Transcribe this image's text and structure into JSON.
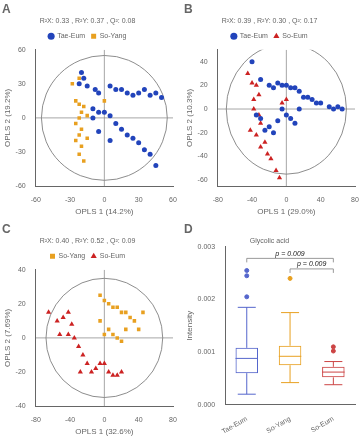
{
  "chart_data": [
    {
      "type": "scatter",
      "panel_label": "A",
      "title": "R²X: 0.33 , R²Y: 0.37 , Q²: 0.08",
      "xlabel": "OPLS 1 (14.2%)",
      "ylabel": "OPLS 2 (19.2%)",
      "xlim": [
        -60,
        60
      ],
      "ylim": [
        -60,
        60
      ],
      "xticks": [
        -60,
        -30,
        0,
        30,
        60
      ],
      "yticks": [
        -60,
        -30,
        0,
        30,
        60
      ],
      "grid": false,
      "legend": "top",
      "ellipse": {
        "center": [
          0,
          0
        ],
        "rx": 55,
        "ry": 55
      },
      "reference_lines": {
        "x": 0,
        "y": 0
      },
      "series": [
        {
          "name": "Tae-Eum",
          "color": "#2244BB",
          "marker": "circle",
          "values": [
            [
              -20,
              40
            ],
            [
              -18,
              35
            ],
            [
              -22,
              30
            ],
            [
              -15,
              28
            ],
            [
              -8,
              25
            ],
            [
              -5,
              22
            ],
            [
              5,
              28
            ],
            [
              10,
              25
            ],
            [
              15,
              25
            ],
            [
              20,
              22
            ],
            [
              25,
              20
            ],
            [
              30,
              22
            ],
            [
              35,
              25
            ],
            [
              40,
              20
            ],
            [
              45,
              22
            ],
            [
              50,
              18
            ],
            [
              -10,
              8
            ],
            [
              -5,
              5
            ],
            [
              0,
              5
            ],
            [
              5,
              2
            ],
            [
              10,
              -5
            ],
            [
              15,
              -10
            ],
            [
              20,
              -15
            ],
            [
              25,
              -18
            ],
            [
              30,
              -22
            ],
            [
              35,
              -28
            ],
            [
              40,
              -32
            ],
            [
              45,
              -42
            ],
            [
              -5,
              -12
            ],
            [
              5,
              -20
            ],
            [
              -10,
              0
            ]
          ]
        },
        {
          "name": "So-Yang",
          "color": "#E8A020",
          "marker": "square",
          "values": [
            [
              -22,
              35
            ],
            [
              -28,
              30
            ],
            [
              -25,
              15
            ],
            [
              -22,
              12
            ],
            [
              -18,
              10
            ],
            [
              -20,
              5
            ],
            [
              -15,
              2
            ],
            [
              -22,
              0
            ],
            [
              -25,
              -5
            ],
            [
              -20,
              -10
            ],
            [
              -22,
              -15
            ],
            [
              -25,
              -20
            ],
            [
              -20,
              -25
            ],
            [
              -22,
              -32
            ],
            [
              -18,
              -38
            ],
            [
              -15,
              -18
            ],
            [
              0,
              15
            ]
          ]
        }
      ]
    },
    {
      "type": "scatter",
      "panel_label": "B",
      "title": "R²X: 0.39 , R²Y: 0.30 , Q²: 0.17",
      "xlabel": "OPLS 1 (29.0%)",
      "ylabel": "OPLS 2 (10.3%)",
      "xlim": [
        -80,
        80
      ],
      "ylim": [
        -65,
        50
      ],
      "xticks": [
        -80,
        -40,
        0,
        40,
        80
      ],
      "yticks": [
        -60,
        -40,
        -20,
        0,
        20,
        40
      ],
      "grid": false,
      "legend": "top",
      "ellipse": {
        "center": [
          0,
          0
        ],
        "rx": 70,
        "ry": 55
      },
      "reference_lines": {
        "x": 0,
        "y": 0
      },
      "series": [
        {
          "name": "Tae-Eum",
          "color": "#2244BB",
          "marker": "circle",
          "values": [
            [
              -40,
              40
            ],
            [
              -30,
              25
            ],
            [
              -20,
              20
            ],
            [
              -15,
              18
            ],
            [
              -10,
              22
            ],
            [
              -5,
              20
            ],
            [
              0,
              20
            ],
            [
              5,
              18
            ],
            [
              10,
              18
            ],
            [
              15,
              15
            ],
            [
              20,
              10
            ],
            [
              25,
              10
            ],
            [
              30,
              8
            ],
            [
              35,
              5
            ],
            [
              40,
              5
            ],
            [
              50,
              2
            ],
            [
              55,
              0
            ],
            [
              60,
              2
            ],
            [
              65,
              0
            ],
            [
              -5,
              0
            ],
            [
              0,
              -5
            ],
            [
              5,
              -8
            ],
            [
              10,
              -12
            ],
            [
              -10,
              -10
            ],
            [
              -20,
              -15
            ],
            [
              -25,
              -18
            ],
            [
              -15,
              -20
            ],
            [
              -30,
              -8
            ],
            [
              -35,
              -5
            ],
            [
              15,
              0
            ]
          ]
        },
        {
          "name": "So-Eum",
          "color": "#CC2222",
          "marker": "triangle",
          "values": [
            [
              -45,
              30
            ],
            [
              -40,
              22
            ],
            [
              -35,
              20
            ],
            [
              -38,
              8
            ],
            [
              -32,
              12
            ],
            [
              -38,
              0
            ],
            [
              -32,
              -5
            ],
            [
              -30,
              -12
            ],
            [
              -35,
              -22
            ],
            [
              -25,
              -28
            ],
            [
              -30,
              -32
            ],
            [
              -22,
              -38
            ],
            [
              -18,
              -42
            ],
            [
              -12,
              -52
            ],
            [
              -8,
              -58
            ],
            [
              -42,
              -18
            ],
            [
              0,
              8
            ],
            [
              -5,
              5
            ]
          ]
        }
      ]
    },
    {
      "type": "scatter",
      "panel_label": "C",
      "title": "R²X: 0.40 , R²Y: 0.52 , Q²: 0.09",
      "xlabel": "OPLS 1 (32.6%)",
      "ylabel": "OPLS 2 (7.69%)",
      "xlim": [
        -80,
        80
      ],
      "ylim": [
        -40,
        40
      ],
      "xticks": [
        -80,
        -40,
        0,
        40,
        80
      ],
      "yticks": [
        -40,
        -20,
        0,
        20,
        40
      ],
      "grid": false,
      "legend": "top",
      "ellipse": {
        "center": [
          0,
          0
        ],
        "rx": 68,
        "ry": 35
      },
      "reference_lines": {
        "x": 0,
        "y": 0
      },
      "series": [
        {
          "name": "So-Yang",
          "color": "#E8A020",
          "marker": "square",
          "values": [
            [
              -5,
              25
            ],
            [
              0,
              22
            ],
            [
              5,
              20
            ],
            [
              10,
              18
            ],
            [
              15,
              18
            ],
            [
              20,
              15
            ],
            [
              25,
              15
            ],
            [
              30,
              12
            ],
            [
              35,
              10
            ],
            [
              40,
              5
            ],
            [
              45,
              15
            ],
            [
              0,
              2
            ],
            [
              5,
              5
            ],
            [
              10,
              2
            ],
            [
              15,
              0
            ],
            [
              20,
              -2
            ],
            [
              -5,
              10
            ],
            [
              25,
              5
            ]
          ]
        },
        {
          "name": "So-Eum",
          "color": "#CC2222",
          "marker": "triangle",
          "values": [
            [
              -65,
              15
            ],
            [
              -55,
              10
            ],
            [
              -48,
              12
            ],
            [
              -42,
              2
            ],
            [
              -38,
              8
            ],
            [
              -35,
              0
            ],
            [
              -30,
              -5
            ],
            [
              -25,
              -10
            ],
            [
              -20,
              -15
            ],
            [
              -15,
              -20
            ],
            [
              -10,
              -18
            ],
            [
              -5,
              -15
            ],
            [
              0,
              -15
            ],
            [
              5,
              -20
            ],
            [
              10,
              -22
            ],
            [
              15,
              -22
            ],
            [
              20,
              -20
            ],
            [
              -52,
              2
            ],
            [
              -42,
              15
            ],
            [
              -28,
              -20
            ]
          ]
        }
      ]
    },
    {
      "type": "box",
      "panel_label": "D",
      "title": "Glycolic acid",
      "ylabel": "Intensity",
      "categories": [
        "Tae-Eum",
        "So-Yang",
        "So-Eum"
      ],
      "colors": [
        "#5566CC",
        "#E8A020",
        "#CC4444"
      ],
      "ylim": [
        0,
        0.003
      ],
      "yticks": [
        {
          "value": 0.0,
          "label": "0.000"
        },
        {
          "value": 0.001,
          "label": "0.001"
        },
        {
          "value": 0.002,
          "label": "0.002"
        },
        {
          "value": 0.003,
          "label": "0.003"
        }
      ],
      "grid": false,
      "boxes": [
        {
          "q1": 0.0006,
          "median": 0.00088,
          "q3": 0.00108,
          "whisker_low": 0.0002,
          "whisker_high": 0.00185,
          "outliers": [
            0.00205,
            0.00245,
            0.00255
          ]
        },
        {
          "q1": 0.00075,
          "median": 0.00092,
          "q3": 0.00112,
          "whisker_low": 0.00042,
          "whisker_high": 0.00175,
          "outliers": [
            0.0024
          ]
        },
        {
          "q1": 0.00052,
          "median": 0.00062,
          "q3": 0.00072,
          "whisker_low": 0.00038,
          "whisker_high": 0.00082,
          "outliers": [
            0.00102,
            0.0011
          ]
        }
      ],
      "annotations": [
        {
          "text": "p = 0.009",
          "from": "Tae-Eum",
          "to": "So-Eum",
          "y": 0.00278
        },
        {
          "text": "p = 0.009",
          "from": "So-Yang",
          "to": "So-Eum",
          "y": 0.00258
        }
      ]
    }
  ]
}
